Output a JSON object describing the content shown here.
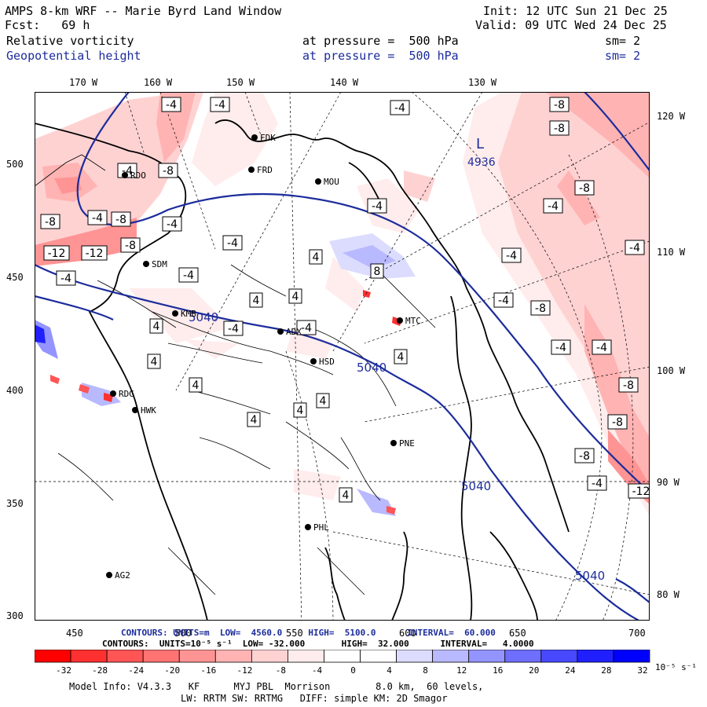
{
  "header": {
    "title": "AMPS 8-km WRF -- Marie Byrd Land Window",
    "init": "Init: 12 UTC Sun 21 Dec 25",
    "fcst": "Fcst:   69 h",
    "valid": "Valid: 09 UTC Wed 24 Dec 25",
    "field1": "Relative vorticity",
    "field1_level": "at pressure =  500 hPa",
    "field1_sm": "sm= 2",
    "field2": "Geopotential height",
    "field2_level": "at pressure =  500 hPa",
    "field2_sm": "sm= 2"
  },
  "axes": {
    "top_lon": [
      "170 W",
      "160 W",
      "150 W",
      "140 W",
      "130 W"
    ],
    "right_lon": [
      "120 W",
      "110 W",
      "100 W",
      "90 W",
      "80 W"
    ],
    "left_ticks": [
      "500",
      "450",
      "400",
      "350",
      "300"
    ],
    "bottom_ticks": [
      "450",
      "500",
      "550",
      "600",
      "650",
      "700"
    ]
  },
  "stations": [
    "FDK",
    "FRD",
    "MOU",
    "RDO",
    "SDM",
    "KMB",
    "ADX",
    "HSD",
    "MTC",
    "RDG",
    "HWK",
    "PNE",
    "PHL",
    "AG2"
  ],
  "height_labels": {
    "low_marker": "L",
    "low_value": "4936",
    "contour": "5040"
  },
  "vort_labels": [
    "-4",
    "-8",
    "-12",
    "4",
    "8"
  ],
  "contour_info": {
    "height_line": "CONTOURS: UNITS=m  LOW=  4560.0     HIGH=  5100.0      INTERVAL=  60.000",
    "vort_line": "CONTOURS:  UNITS=10⁻⁵ s⁻¹  LOW= -32.000       HIGH=  32.000      INTERVAL=   4.0000"
  },
  "colorbar": {
    "labels": [
      "-32",
      "-28",
      "-24",
      "-20",
      "-16",
      "-12",
      "-8",
      "-4",
      "0",
      "4",
      "8",
      "12",
      "16",
      "20",
      "24",
      "28",
      "32"
    ],
    "units": "10⁻⁵ s⁻¹",
    "colors": [
      "#ff0000",
      "#ff3030",
      "#ff5555",
      "#ff7373",
      "#ff9494",
      "#ffb3b3",
      "#ffd2d2",
      "#ffecec",
      "#ffffff",
      "#ffffff",
      "#dcdcff",
      "#b9b9ff",
      "#9494ff",
      "#6e6eff",
      "#4848ff",
      "#2020ff",
      "#0000ff"
    ]
  },
  "footer": {
    "model": "Model Info: V4.3.3   KF      MYJ PBL  Morrison        8.0 km,  60 levels,",
    "physics": "LW: RRTM SW: RRTMG   DIFF: simple KM: 2D Smagor"
  }
}
